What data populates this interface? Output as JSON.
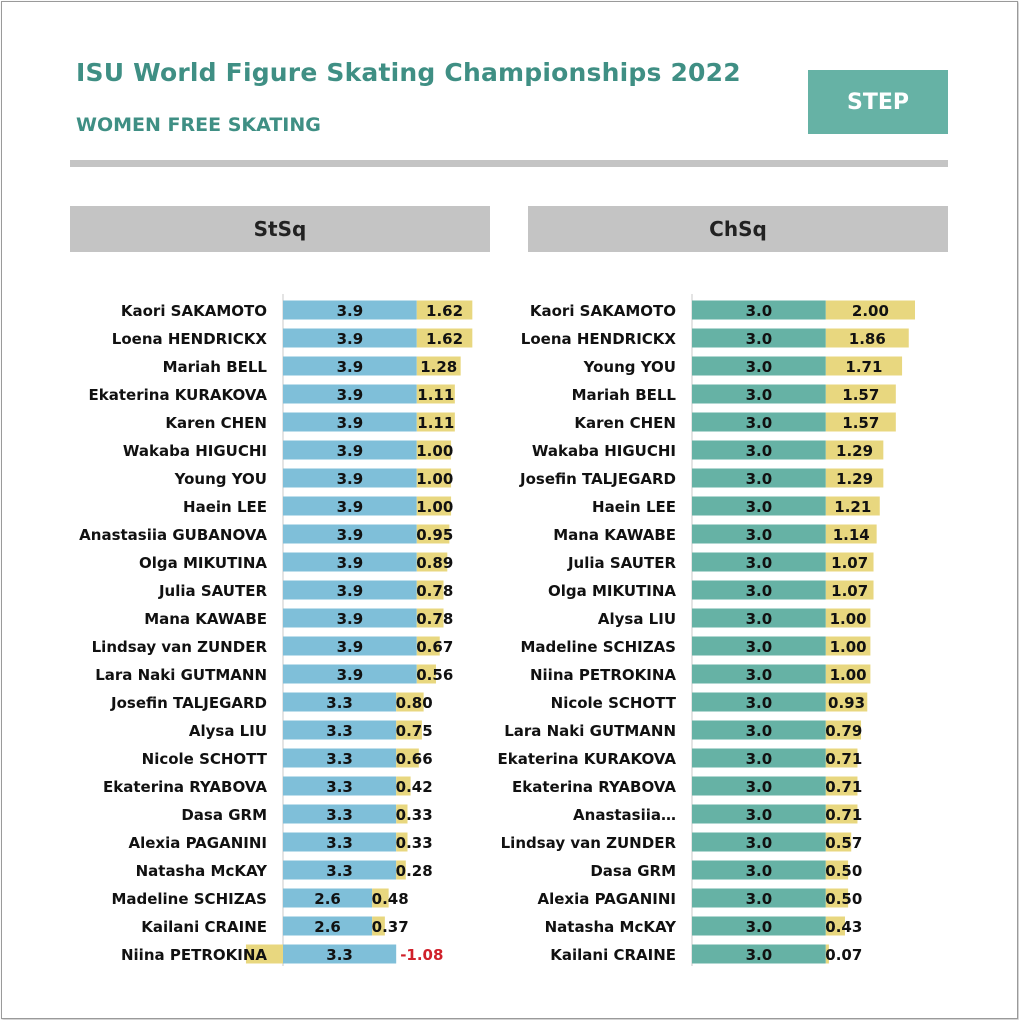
{
  "header": {
    "title": "ISU World Figure Skating Championships 2022",
    "subtitle": "WOMEN FREE SKATING",
    "badge": "STEP"
  },
  "colors": {
    "accent": "#3f8f84",
    "badge": "#66b2a5",
    "base_blue": "#7fbfd9",
    "base_teal": "#66b2a5",
    "goe_yellow": "#e8d77f",
    "negative_text": "#d0202a",
    "header_gray": "#c4c4c4"
  },
  "chart_data": [
    {
      "type": "bar",
      "title": "StSq",
      "orientation": "horizontal-stacked",
      "series": [
        {
          "name": "",
          "values": [
            3.9,
            3.9,
            3.9,
            3.9,
            3.9,
            3.9,
            3.9,
            3.9,
            3.9,
            3.9,
            3.9,
            3.9,
            3.9,
            3.9,
            3.3,
            3.3,
            3.3,
            3.3,
            3.3,
            3.3,
            3.3,
            2.6,
            2.6,
            3.3
          ]
        },
        {
          "name": "",
          "values": [
            1.62,
            1.62,
            1.28,
            1.11,
            1.11,
            1.0,
            1.0,
            1.0,
            0.95,
            0.89,
            0.78,
            0.78,
            0.67,
            0.56,
            0.8,
            0.75,
            0.66,
            0.42,
            0.33,
            0.33,
            0.28,
            0.48,
            0.37,
            -1.08
          ]
        }
      ],
      "categories": [
        "Kaori SAKAMOTO",
        "Loena HENDRICKX",
        "Mariah BELL",
        "Ekaterina KURAKOVA",
        "Karen CHEN",
        "Wakaba HIGUCHI",
        "Young YOU",
        "Haein LEE",
        "Anastasiia GUBANOVA",
        "Olga MIKUTINA",
        "Julia SAUTER",
        "Mana KAWABE",
        "Lindsay van ZUNDER",
        "Lara Naki GUTMANN",
        "Josefin TALJEGARD",
        "Alysa LIU",
        "Nicole SCHOTT",
        "Ekaterina RYABOVA",
        "Dasa GRM",
        "Alexia PAGANINI",
        "Natasha McKAY",
        "Madeline SCHIZAS",
        "Kailani CRAINE",
        "Niina PETROKINA"
      ],
      "base_labels": [
        "3.9",
        "3.9",
        "3.9",
        "3.9",
        "3.9",
        "3.9",
        "3.9",
        "3.9",
        "3.9",
        "3.9",
        "3.9",
        "3.9",
        "3.9",
        "3.9",
        "3.3",
        "3.3",
        "3.3",
        "3.3",
        "3.3",
        "3.3",
        "3.3",
        "2.6",
        "2.6",
        "3.3"
      ],
      "goe_labels": [
        "1.62",
        "1.62",
        "1.28",
        "1.11",
        "1.11",
        "1.00",
        "1.00",
        "1.00",
        "0.95",
        "0.89",
        "0.78",
        "0.78",
        "0.67",
        "0.56",
        "0.80",
        "0.75",
        "0.66",
        "0.42",
        "0.33",
        "0.33",
        "0.28",
        "0.48",
        "0.37",
        "-1.08"
      ],
      "xlim": [
        -1.2,
        5.6
      ],
      "legend": "none",
      "grid": false
    },
    {
      "type": "bar",
      "title": "ChSq",
      "orientation": "horizontal-stacked",
      "series": [
        {
          "name": "",
          "values": [
            3.0,
            3.0,
            3.0,
            3.0,
            3.0,
            3.0,
            3.0,
            3.0,
            3.0,
            3.0,
            3.0,
            3.0,
            3.0,
            3.0,
            3.0,
            3.0,
            3.0,
            3.0,
            3.0,
            3.0,
            3.0,
            3.0,
            3.0,
            3.0
          ]
        },
        {
          "name": "",
          "values": [
            2.0,
            1.86,
            1.71,
            1.57,
            1.57,
            1.29,
            1.29,
            1.21,
            1.14,
            1.07,
            1.07,
            1.0,
            1.0,
            1.0,
            0.93,
            0.79,
            0.71,
            0.71,
            0.71,
            0.57,
            0.5,
            0.5,
            0.43,
            0.07
          ]
        }
      ],
      "categories": [
        "Kaori SAKAMOTO",
        "Loena HENDRICKX",
        "Young YOU",
        "Mariah BELL",
        "Karen CHEN",
        "Wakaba HIGUCHI",
        "Josefin TALJEGARD",
        "Haein LEE",
        "Mana KAWABE",
        "Julia SAUTER",
        "Olga MIKUTINA",
        "Alysa LIU",
        "Madeline SCHIZAS",
        "Niina PETROKINA",
        "Nicole SCHOTT",
        "Lara Naki GUTMANN",
        "Ekaterina KURAKOVA",
        "Ekaterina RYABOVA",
        "Anastasiia…",
        "Lindsay van ZUNDER",
        "Dasa GRM",
        "Alexia PAGANINI",
        "Natasha McKAY",
        "Kailani CRAINE"
      ],
      "base_labels": [
        "3.0",
        "3.0",
        "3.0",
        "3.0",
        "3.0",
        "3.0",
        "3.0",
        "3.0",
        "3.0",
        "3.0",
        "3.0",
        "3.0",
        "3.0",
        "3.0",
        "3.0",
        "3.0",
        "3.0",
        "3.0",
        "3.0",
        "3.0",
        "3.0",
        "3.0",
        "3.0",
        "3.0"
      ],
      "goe_labels": [
        "2.00",
        "1.86",
        "1.71",
        "1.57",
        "1.57",
        "1.29",
        "1.29",
        "1.21",
        "1.14",
        "1.07",
        "1.07",
        "1.00",
        "1.00",
        "1.00",
        "0.93",
        "0.79",
        "0.71",
        "0.71",
        "0.71",
        "0.57",
        "0.50",
        "0.50",
        "0.43",
        "0.07"
      ],
      "xlim": [
        0,
        5.6
      ],
      "legend": "none",
      "grid": false
    }
  ]
}
